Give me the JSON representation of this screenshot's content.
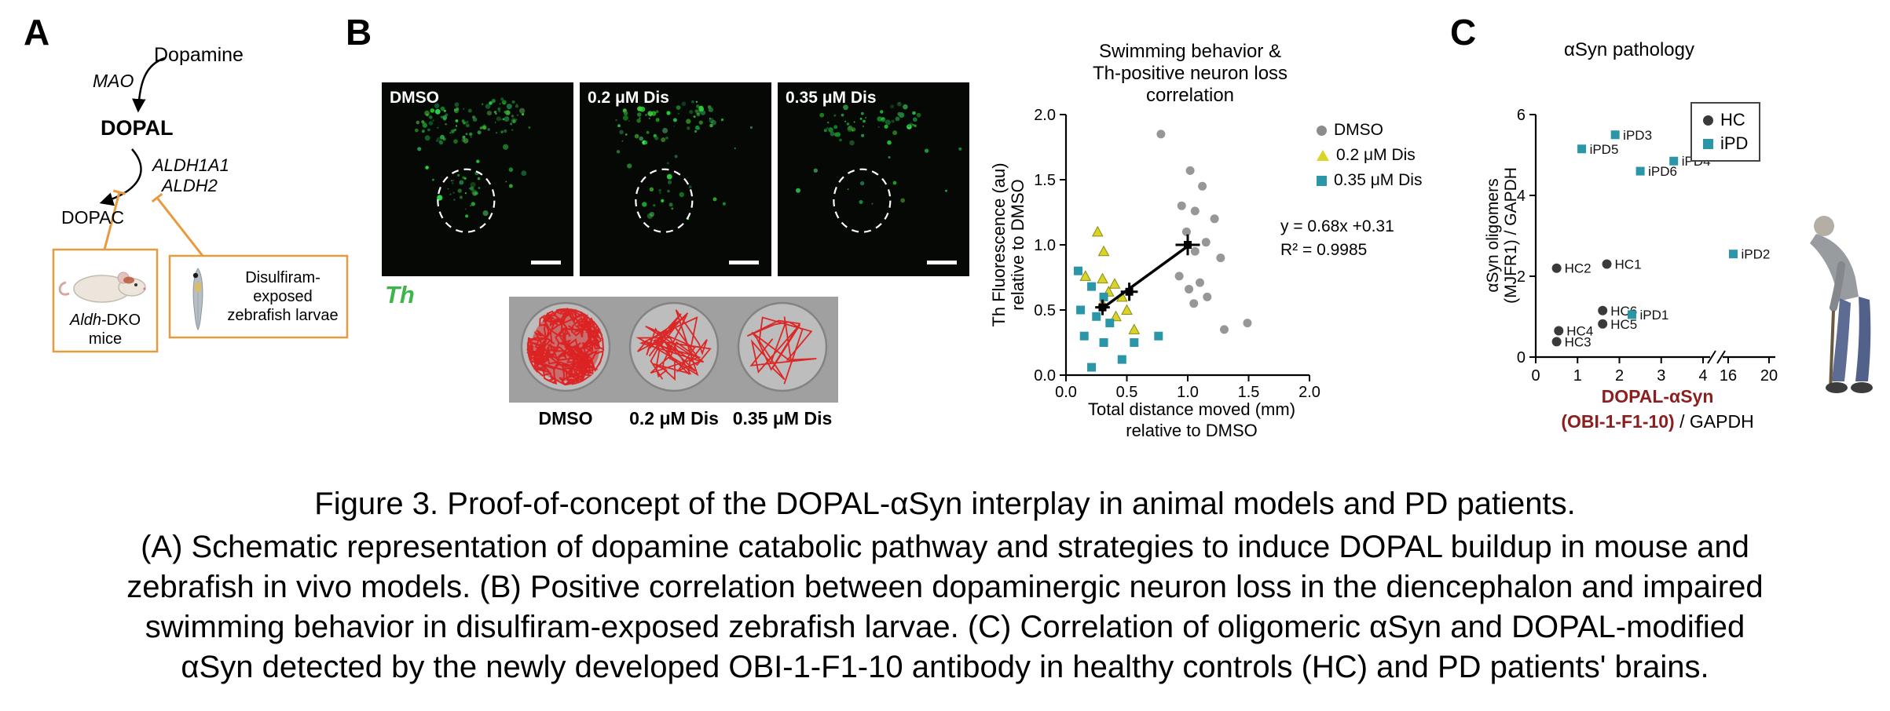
{
  "colors": {
    "teal": "#2b96a8",
    "yellow": "#d9d426",
    "gray": "#8c8c8c",
    "hc_dark": "#3a3a3a",
    "orange": "#e89b3e",
    "th_green": "#3cb54a",
    "dark_red": "#8b1f1f",
    "track_red": "#dd1f1f"
  },
  "panelA": {
    "label": "A",
    "nodes": {
      "dopamine": "Dopamine",
      "mao": "MAO",
      "dopal": "DOPAL",
      "aldh1a1": "ALDH1A1",
      "aldh2": "ALDH2",
      "dopac": "DOPAC"
    },
    "mouse_box": {
      "gene": "Aldh",
      "suffix": "-DKO",
      "line2": "mice"
    },
    "zebrafish_box": {
      "line1": "Disulfiram-",
      "line2": "exposed",
      "line3": "zebrafish larvae"
    }
  },
  "panelB": {
    "label": "B",
    "micrographs": [
      {
        "label": "DMSO"
      },
      {
        "label": "0.2 μM Dis"
      },
      {
        "label": "0.35 μM Dis"
      }
    ],
    "stain_label": "Th",
    "well_labels": [
      "DMSO",
      "0.2 μM Dis",
      "0.35 μM Dis"
    ]
  },
  "panelC": {
    "label": "C"
  },
  "caption": {
    "title": "Figure 3. Proof-of-concept of the DOPAL-αSyn interplay in animal models and PD patients.",
    "body_lines": [
      "(A) Schematic representation of dopamine catabolic pathway and strategies to induce DOPAL buildup in mouse and",
      "zebrafish in vivo models. (B) Positive correlation between dopaminergic neuron loss in the diencephalon and impaired",
      "swimming behavior in disulfiram-exposed zebrafish larvae. (C) Correlation of oligomeric αSyn and DOPAL-modified",
      "αSyn detected by the newly developed OBI-1-F1-10 antibody in healthy controls (HC) and PD patients' brains."
    ]
  },
  "chart_data": [
    {
      "id": "swimming-correlation",
      "type": "scatter",
      "title": "Swimming behavior & Th-positive neuron loss correlation",
      "title_lines": [
        "Swimming behavior &",
        "Th-positive neuron loss",
        "correlation"
      ],
      "xlabel": "Total distance moved (mm) relative to DMSO",
      "xlabel_lines": [
        "Total distance moved (mm)",
        "relative to DMSO"
      ],
      "ylabel": "Th Fluorescence (au) relative to DMSO",
      "ylabel_lines": [
        "Th Fluorescence (au)",
        "relative to DMSO"
      ],
      "xlim": [
        0,
        2
      ],
      "ylim": [
        0,
        2
      ],
      "xticks": [
        "0.0",
        "0.5",
        "1.0",
        "1.5",
        "2.0"
      ],
      "yticks": [
        "0.0",
        "0.5",
        "1.0",
        "1.5",
        "2.0"
      ],
      "annotation_lines": [
        "y = 0.68x +0.31",
        "R² = 0.9985"
      ],
      "series": [
        {
          "name": "DMSO",
          "marker": "circle",
          "color": "#8c8c8c",
          "points": [
            [
              0.78,
              1.85
            ],
            [
              1.02,
              1.57
            ],
            [
              1.12,
              1.45
            ],
            [
              0.95,
              1.3
            ],
            [
              1.06,
              1.26
            ],
            [
              1.22,
              1.2
            ],
            [
              0.99,
              1.1
            ],
            [
              1.15,
              1.02
            ],
            [
              1.06,
              0.95
            ],
            [
              1.27,
              0.9
            ],
            [
              0.93,
              0.76
            ],
            [
              1.1,
              0.71
            ],
            [
              1.01,
              0.66
            ],
            [
              1.16,
              0.6
            ],
            [
              1.05,
              0.55
            ],
            [
              1.49,
              0.4
            ],
            [
              1.3,
              0.35
            ]
          ]
        },
        {
          "name": "0.2 μM Dis",
          "marker": "triangle",
          "color": "#d9d426",
          "points": [
            [
              0.26,
              1.1
            ],
            [
              0.31,
              0.95
            ],
            [
              0.16,
              0.76
            ],
            [
              0.3,
              0.74
            ],
            [
              0.4,
              0.7
            ],
            [
              0.35,
              0.64
            ],
            [
              0.46,
              0.6
            ],
            [
              0.3,
              0.55
            ],
            [
              0.5,
              0.5
            ],
            [
              0.41,
              0.45
            ],
            [
              0.56,
              0.35
            ]
          ]
        },
        {
          "name": "0.35 μM Dis",
          "marker": "square",
          "color": "#2b96a8",
          "points": [
            [
              0.1,
              0.8
            ],
            [
              0.21,
              0.68
            ],
            [
              0.31,
              0.6
            ],
            [
              0.12,
              0.5
            ],
            [
              0.25,
              0.45
            ],
            [
              0.36,
              0.4
            ],
            [
              0.15,
              0.3
            ],
            [
              0.31,
              0.25
            ],
            [
              0.56,
              0.25
            ],
            [
              0.76,
              0.3
            ],
            [
              0.21,
              0.06
            ],
            [
              0.46,
              0.12
            ]
          ]
        }
      ],
      "means": [
        {
          "x": 0.3,
          "y": 0.52,
          "ex": 0.06,
          "ey": 0.06
        },
        {
          "x": 0.52,
          "y": 0.64,
          "ex": 0.07,
          "ey": 0.07
        },
        {
          "x": 1.0,
          "y": 1.0,
          "ex": 0.1,
          "ey": 0.08
        }
      ],
      "fit": {
        "slope": 0.68,
        "intercept": 0.31,
        "x0": 0.3,
        "x1": 1.0
      },
      "legend_position": "right"
    },
    {
      "id": "asyn-pathology",
      "type": "scatter",
      "title": "αSyn pathology",
      "ylabel": "αSyn oligomers (MJFR1) / GAPDH",
      "ylabel_lines": [
        "αSyn oligomers",
        "(MJFR1) / GAPDH"
      ],
      "xlabel_line1": "DOPAL-αSyn",
      "xlabel_line2_red": "(OBI-1-F1-10)",
      "xlabel_line2_black": " / GAPDH",
      "ylim": [
        0,
        6
      ],
      "yticks": [
        0,
        2,
        4,
        6
      ],
      "x_axis": {
        "left_ticks": [
          0,
          1,
          2,
          3,
          4
        ],
        "right_ticks": [
          16,
          20
        ],
        "break": true
      },
      "groups": [
        {
          "name": "HC",
          "marker": "circle",
          "color": "#3a3a3a"
        },
        {
          "name": "iPD",
          "marker": "square",
          "color": "#2b96a8"
        }
      ],
      "points": [
        {
          "label": "iPD3",
          "group": "iPD",
          "x": 1.9,
          "y": 5.5
        },
        {
          "label": "iPD5",
          "group": "iPD",
          "x": 1.1,
          "y": 5.15
        },
        {
          "label": "iPD4",
          "group": "iPD",
          "x": 3.3,
          "y": 4.85
        },
        {
          "label": "iPD6",
          "group": "iPD",
          "x": 2.5,
          "y": 4.6
        },
        {
          "label": "iPD2",
          "group": "iPD",
          "x": 16.5,
          "y": 2.55
        },
        {
          "label": "HC1",
          "group": "HC",
          "x": 1.7,
          "y": 2.3
        },
        {
          "label": "HC2",
          "group": "HC",
          "x": 0.5,
          "y": 2.2
        },
        {
          "label": "HC6",
          "group": "HC",
          "x": 1.6,
          "y": 1.15
        },
        {
          "label": "iPD1",
          "group": "iPD",
          "x": 2.3,
          "y": 1.05
        },
        {
          "label": "HC5",
          "group": "HC",
          "x": 1.6,
          "y": 0.82
        },
        {
          "label": "HC4",
          "group": "HC",
          "x": 0.55,
          "y": 0.65
        },
        {
          "label": "HC3",
          "group": "HC",
          "x": 0.5,
          "y": 0.38
        }
      ],
      "legend_position": "top-right-box"
    }
  ]
}
